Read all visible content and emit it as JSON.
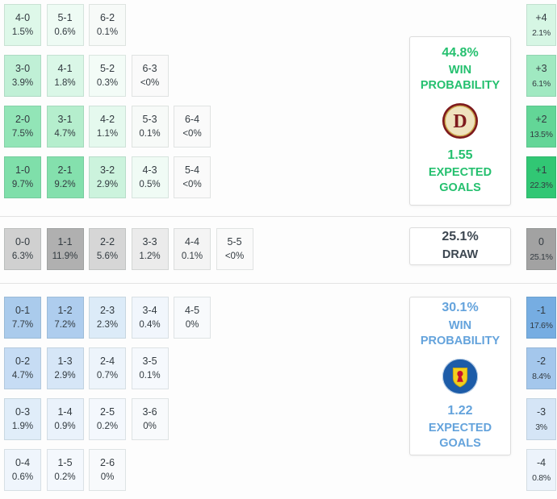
{
  "chart_data": {
    "type": "heatmap",
    "sections": [
      {
        "name": "home_win",
        "accent": "#25c06f",
        "rows": [
          [
            {
              "score": "4-0",
              "pct": "1.5%",
              "bg": "#def8e9"
            },
            {
              "score": "5-1",
              "pct": "0.6%",
              "bg": "#eefbf4"
            },
            {
              "score": "6-2",
              "pct": "0.1%",
              "bg": "#f7faf8"
            }
          ],
          [
            {
              "score": "3-0",
              "pct": "3.9%",
              "bg": "#c0f0d6"
            },
            {
              "score": "4-1",
              "pct": "1.8%",
              "bg": "#daf7e7"
            },
            {
              "score": "5-2",
              "pct": "0.3%",
              "bg": "#f3fcf7"
            },
            {
              "score": "6-3",
              "pct": "<0%",
              "bg": "#fafafa"
            }
          ],
          [
            {
              "score": "2-0",
              "pct": "7.5%",
              "bg": "#92e5b7"
            },
            {
              "score": "3-1",
              "pct": "4.7%",
              "bg": "#b5eecd"
            },
            {
              "score": "4-2",
              "pct": "1.1%",
              "bg": "#e5f9ee"
            },
            {
              "score": "5-3",
              "pct": "0.1%",
              "bg": "#f7faf8"
            },
            {
              "score": "6-4",
              "pct": "<0%",
              "bg": "#fafafa"
            }
          ],
          [
            {
              "score": "1-0",
              "pct": "9.7%",
              "bg": "#7fdfaa"
            },
            {
              "score": "2-1",
              "pct": "9.2%",
              "bg": "#84e0ad"
            },
            {
              "score": "3-2",
              "pct": "2.9%",
              "bg": "#ccf3dd"
            },
            {
              "score": "4-3",
              "pct": "0.5%",
              "bg": "#f0fbf5"
            },
            {
              "score": "5-4",
              "pct": "<0%",
              "bg": "#fafafa"
            }
          ]
        ],
        "margins": [
          {
            "label": "+4",
            "pct": "2.1%",
            "bg": "#d6f6e4"
          },
          {
            "label": "+3",
            "pct": "6.1%",
            "bg": "#a0e9c1"
          },
          {
            "label": "+2",
            "pct": "13.5%",
            "bg": "#63d697"
          },
          {
            "label": "+1",
            "pct": "22.3%",
            "bg": "#31c774"
          }
        ]
      },
      {
        "name": "draw",
        "accent": "#3c4650",
        "rows": [
          [
            {
              "score": "0-0",
              "pct": "6.3%",
              "bg": "#d0d0d0"
            },
            {
              "score": "1-1",
              "pct": "11.9%",
              "bg": "#b0b0b0"
            },
            {
              "score": "2-2",
              "pct": "5.6%",
              "bg": "#d6d6d6"
            },
            {
              "score": "3-3",
              "pct": "1.2%",
              "bg": "#ebebeb"
            },
            {
              "score": "4-4",
              "pct": "0.1%",
              "bg": "#f4f4f4"
            },
            {
              "score": "5-5",
              "pct": "<0%",
              "bg": "#fafafa"
            }
          ]
        ],
        "margins": [
          {
            "label": "0",
            "pct": "25.1%",
            "bg": "#a2a2a2"
          }
        ]
      },
      {
        "name": "away_win",
        "accent": "#64a3dc",
        "rows": [
          [
            {
              "score": "0-1",
              "pct": "7.7%",
              "bg": "#aacbec"
            },
            {
              "score": "1-2",
              "pct": "7.2%",
              "bg": "#aecdee"
            },
            {
              "score": "2-3",
              "pct": "2.3%",
              "bg": "#dcebf8"
            },
            {
              "score": "3-4",
              "pct": "0.4%",
              "bg": "#f1f6fc"
            },
            {
              "score": "4-5",
              "pct": "0%",
              "bg": "#f8fafc"
            }
          ],
          [
            {
              "score": "0-2",
              "pct": "4.7%",
              "bg": "#c6dcf4"
            },
            {
              "score": "1-3",
              "pct": "2.9%",
              "bg": "#d6e6f7"
            },
            {
              "score": "2-4",
              "pct": "0.7%",
              "bg": "#edf4fb"
            },
            {
              "score": "3-5",
              "pct": "0.1%",
              "bg": "#f6f9fd"
            }
          ],
          [
            {
              "score": "0-3",
              "pct": "1.9%",
              "bg": "#e0edf9"
            },
            {
              "score": "1-4",
              "pct": "0.9%",
              "bg": "#eaf2fb"
            },
            {
              "score": "2-5",
              "pct": "0.2%",
              "bg": "#f4f8fd"
            },
            {
              "score": "3-6",
              "pct": "0%",
              "bg": "#f8fafc"
            }
          ],
          [
            {
              "score": "0-4",
              "pct": "0.6%",
              "bg": "#eff5fc"
            },
            {
              "score": "1-5",
              "pct": "0.2%",
              "bg": "#f4f8fd"
            },
            {
              "score": "2-6",
              "pct": "0%",
              "bg": "#f8fafc"
            }
          ]
        ],
        "margins": [
          {
            "label": "-1",
            "pct": "17.6%",
            "bg": "#76ade2"
          },
          {
            "label": "-2",
            "pct": "8.4%",
            "bg": "#a4c7ec"
          },
          {
            "label": "-3",
            "pct": "3%",
            "bg": "#d5e5f6"
          },
          {
            "label": "-4",
            "pct": "0.8%",
            "bg": "#ecf3fb"
          }
        ]
      }
    ]
  },
  "panels": {
    "home": {
      "win_probability": "44.8%",
      "win_label": "WIN PROBABILITY",
      "expected_goals": "1.55",
      "goals_label": "EXPECTED GOALS",
      "badge_icon": "home-team-badge"
    },
    "draw": {
      "probability": "25.1%",
      "label": "DRAW"
    },
    "away": {
      "win_probability": "30.1%",
      "win_label": "WIN PROBABILITY",
      "expected_goals": "1.22",
      "goals_label": "EXPECTED GOALS",
      "badge_icon": "away-team-badge"
    }
  },
  "colors": {
    "home_accent": "#25c06f",
    "draw_accent": "#3c4650",
    "away_accent": "#64a3dc"
  }
}
